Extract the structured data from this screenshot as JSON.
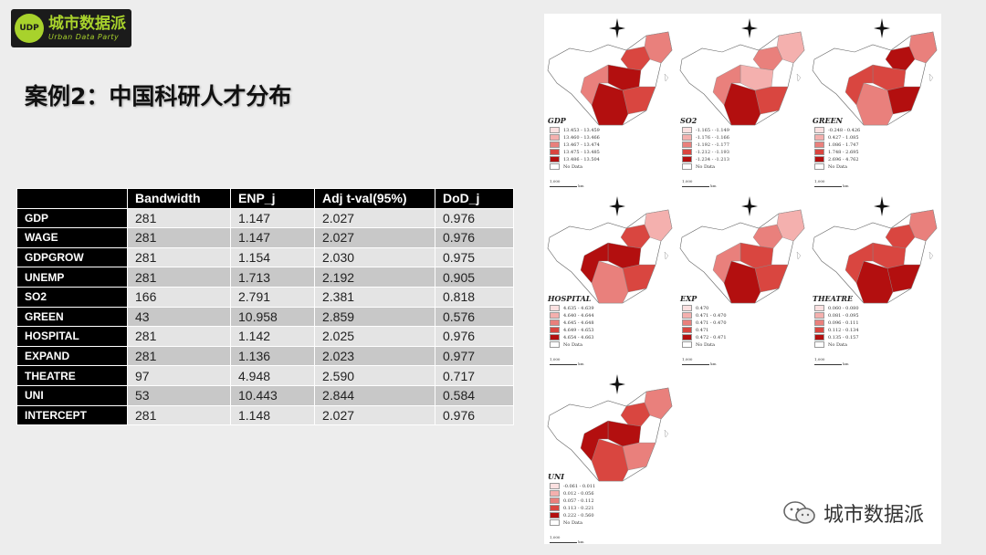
{
  "logo": {
    "badge": "UDP",
    "cn": "城市数据派",
    "en": "Urban Data Party"
  },
  "title": "案例2：中国科研人才分布",
  "table": {
    "headers": [
      "",
      "Bandwidth",
      "ENP_j",
      "Adj t-val(95%)",
      "DoD_j"
    ],
    "rows": [
      [
        "GDP",
        "281",
        "1.147",
        "2.027",
        "0.976"
      ],
      [
        "WAGE",
        "281",
        "1.147",
        "2.027",
        "0.976"
      ],
      [
        "GDPGROW",
        "281",
        "1.154",
        "2.030",
        "0.975"
      ],
      [
        "UNEMP",
        "281",
        "1.713",
        "2.192",
        "0.905"
      ],
      [
        "SO2",
        "166",
        "2.791",
        "2.381",
        "0.818"
      ],
      [
        "GREEN",
        "43",
        "10.958",
        "2.859",
        "0.576"
      ],
      [
        "HOSPITAL",
        "281",
        "1.142",
        "2.025",
        "0.976"
      ],
      [
        "EXPAND",
        "281",
        "1.136",
        "2.023",
        "0.977"
      ],
      [
        "THEATRE",
        "97",
        "4.948",
        "2.590",
        "0.717"
      ],
      [
        "UNI",
        "53",
        "10.443",
        "2.844",
        "0.584"
      ],
      [
        "INTERCEPT",
        "281",
        "1.148",
        "2.027",
        "0.976"
      ]
    ]
  },
  "maps": [
    {
      "label": "GDP",
      "legend": [
        "13.453 - 13.459",
        "13.460 - 13.466",
        "13.467 - 13.474",
        "13.475 - 13.485",
        "13.486 - 13.504",
        "No Data"
      ]
    },
    {
      "label": "SO2",
      "legend": [
        "-1.165 - -1.149",
        "-1.176 - -1.166",
        "-1.192 - -1.177",
        "-1.212 - -1.193",
        "-1.234 - -1.213",
        "No Data"
      ]
    },
    {
      "label": "GREEN",
      "legend": [
        "-0.248 - 0.426",
        "0.427 - 1.085",
        "1.086 - 1.747",
        "1.748 - 2.695",
        "2.696 - 4.762",
        "No Data"
      ]
    },
    {
      "label": "HOSPITAL",
      "legend": [
        "4.635 - 4.639",
        "4.640 - 4.644",
        "4.645 - 4.648",
        "4.649 - 4.653",
        "4.654 - 4.663",
        "No Data"
      ]
    },
    {
      "label": "EXP",
      "legend": [
        "0.470",
        "0.471 - 0.470",
        "0.471 - 0.470",
        "0.471",
        "0.472 - 0.471",
        "No Data"
      ]
    },
    {
      "label": "THEATRE",
      "legend": [
        "0.060 - 0.080",
        "0.081 - 0.095",
        "0.096 - 0.111",
        "0.112 - 0.134",
        "0.135 - 0.157",
        "No Data"
      ]
    },
    {
      "label": "UNI",
      "legend": [
        "-0.061 - 0.011",
        "0.012 - 0.056",
        "0.057 - 0.112",
        "0.113 - 0.221",
        "0.222 - 0.560",
        "No Data"
      ]
    }
  ],
  "scale": {
    "value": "1,000",
    "unit": "km"
  },
  "palette": [
    "#fbe0e0",
    "#f4b0ae",
    "#e9807c",
    "#d94640",
    "#b30f0f",
    "#ffffff"
  ],
  "watermark": "城市数据派"
}
